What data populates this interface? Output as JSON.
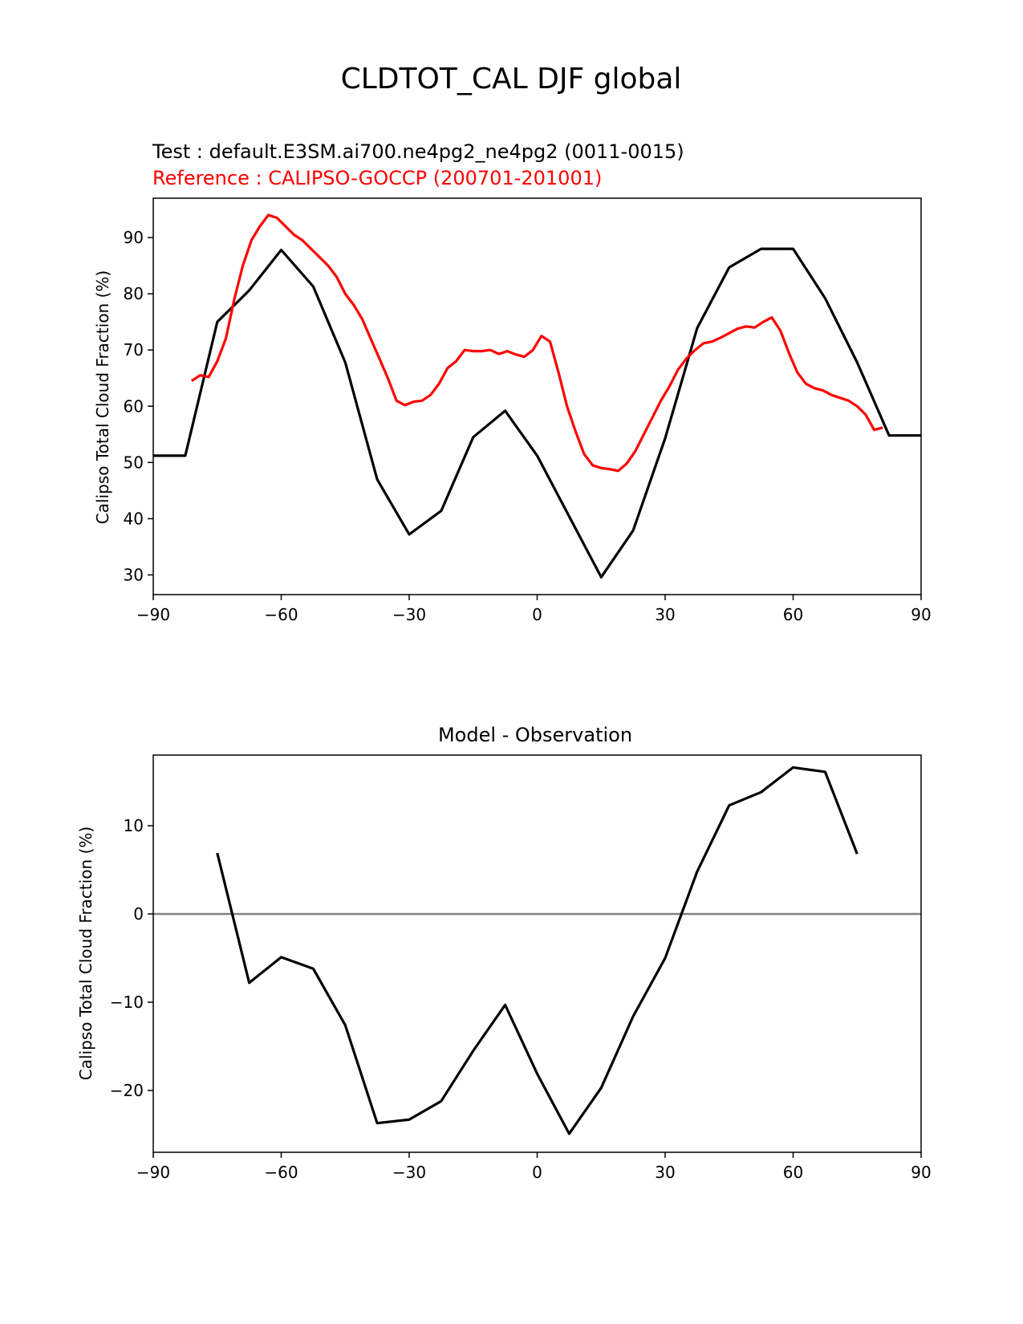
{
  "figure": {
    "title": "CLDTOT_CAL DJF global"
  },
  "chart_data": [
    {
      "type": "line",
      "test_label": "Test : default.E3SM.ai700.ne4pg2_ne4pg2 (0011-0015)",
      "reference_label": "Reference : CALIPSO-GOCCP (200701-201001)",
      "xlabel": "",
      "ylabel": "Calipso Total Cloud Fraction (%)",
      "xlim": [
        -90,
        90
      ],
      "ylim": [
        26.5,
        97
      ],
      "xticks": [
        -90,
        -60,
        -30,
        0,
        30,
        60,
        90
      ],
      "xtick_labels": [
        "−90",
        "−60",
        "−30",
        "0",
        "30",
        "60",
        "90"
      ],
      "yticks": [
        30,
        40,
        50,
        60,
        70,
        80,
        90
      ],
      "ytick_labels": [
        "30",
        "40",
        "50",
        "60",
        "70",
        "80",
        "90"
      ],
      "grid": false,
      "series": [
        {
          "color": "#000000",
          "x": [
            -90,
            -82.5,
            -75,
            -67.5,
            -60,
            -52.5,
            -45,
            -37.5,
            -30,
            -22.5,
            -15,
            -7.5,
            0,
            7.5,
            15,
            22.5,
            30,
            37.5,
            45,
            52.5,
            60,
            67.5,
            75,
            82.5,
            90
          ],
          "y": [
            51.2,
            51.2,
            75.0,
            80.6,
            87.8,
            81.3,
            67.8,
            47.0,
            37.2,
            41.4,
            54.5,
            59.2,
            51.2,
            40.4,
            29.6,
            37.9,
            54.3,
            73.9,
            84.7,
            88.0,
            88.0,
            79.2,
            67.8,
            54.8,
            54.8
          ]
        },
        {
          "color": "#ff0000",
          "x": [
            -81,
            -79,
            -77,
            -75,
            -73,
            -71,
            -69,
            -67,
            -65,
            -63,
            -61,
            -59,
            -57,
            -55,
            -53,
            -51,
            -49,
            -47,
            -45,
            -43,
            -41,
            -39,
            -37,
            -35,
            -33,
            -31,
            -29,
            -27,
            -25,
            -23,
            -21,
            -19,
            -17,
            -15,
            -13,
            -11,
            -9,
            -7,
            -5,
            -3,
            -1,
            1,
            3,
            5,
            7,
            9,
            11,
            13,
            15,
            17,
            19,
            21,
            23,
            25,
            27,
            29,
            31,
            33,
            35,
            37,
            39,
            41,
            43,
            45,
            47,
            49,
            51,
            53,
            55,
            57,
            59,
            61,
            63,
            65,
            67,
            69,
            71,
            73,
            75,
            77,
            79,
            81
          ],
          "y": [
            64.5,
            65.5,
            65.2,
            68.0,
            72.0,
            79.0,
            85.0,
            89.5,
            92.0,
            94.0,
            93.5,
            92.0,
            90.5,
            89.5,
            88.0,
            86.5,
            85.0,
            83.0,
            80.0,
            78.0,
            75.5,
            72.0,
            68.5,
            65.0,
            61.0,
            60.2,
            60.8,
            61.0,
            62.0,
            64.0,
            66.8,
            68.0,
            70.0,
            69.8,
            69.8,
            70.0,
            69.3,
            69.8,
            69.2,
            68.8,
            70.0,
            72.5,
            71.5,
            66.0,
            60.0,
            55.5,
            51.5,
            49.5,
            49.0,
            48.8,
            48.5,
            49.8,
            52.0,
            55.0,
            58.0,
            61.0,
            63.5,
            66.5,
            68.5,
            70.0,
            71.2,
            71.5,
            72.2,
            73.0,
            73.8,
            74.2,
            74.0,
            75.0,
            75.8,
            73.5,
            69.5,
            66.0,
            64.0,
            63.2,
            62.8,
            62.0,
            61.5,
            61.0,
            60.0,
            58.5,
            55.8,
            56.2
          ]
        }
      ]
    },
    {
      "type": "line",
      "title": "Model - Observation",
      "xlabel": "",
      "ylabel": "Calipso Total Cloud Fraction (%)",
      "xlim": [
        -90,
        90
      ],
      "ylim": [
        -27,
        18
      ],
      "xticks": [
        -90,
        -60,
        -30,
        0,
        30,
        60,
        90
      ],
      "xtick_labels": [
        "−90",
        "−60",
        "−30",
        "0",
        "30",
        "60",
        "90"
      ],
      "yticks": [
        -20,
        -10,
        0,
        10
      ],
      "ytick_labels": [
        "−20",
        "−10",
        "0",
        "10"
      ],
      "grid": false,
      "zero_line_color": "#808080",
      "series": [
        {
          "color": "#000000",
          "x": [
            -75,
            -67.5,
            -60,
            -52.5,
            -45,
            -37.5,
            -30,
            -22.5,
            -15,
            -7.5,
            0,
            7.5,
            15,
            22.5,
            30,
            37.5,
            45,
            52.5,
            60,
            67.5,
            75
          ],
          "y": [
            6.9,
            -7.8,
            -4.9,
            -6.2,
            -12.6,
            -23.7,
            -23.3,
            -21.2,
            -15.5,
            -10.3,
            -18.1,
            -24.9,
            -19.7,
            -11.6,
            -5.0,
            4.8,
            12.3,
            13.8,
            16.6,
            16.1,
            6.8
          ]
        }
      ]
    }
  ]
}
